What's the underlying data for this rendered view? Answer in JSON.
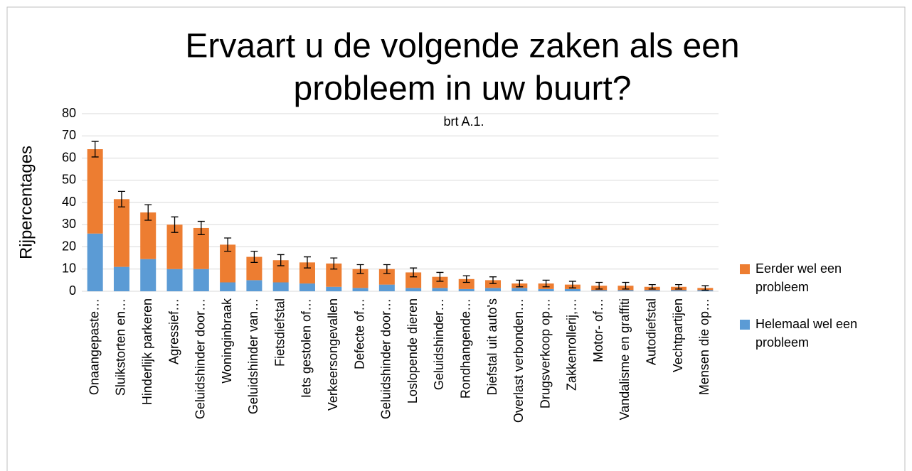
{
  "chart_data": {
    "type": "stacked-bar",
    "title": [
      "Ervaart u de volgende zaken als een",
      "probleem in uw buurt?"
    ],
    "annotation": "brt A.1.",
    "ylabel": "Rijpercentages",
    "categories": [
      "Onaangepaste…",
      "Sluikstorten en…",
      "Hinderlijk parkeren",
      "Agressief…",
      "Geluidshinder door…",
      "Woninginbraak",
      "Geluidshinder van…",
      "Fietsdiefstal",
      "Iets gestolen of…",
      "Verkeersongevallen",
      "Defecte of…",
      "Geluidshinder door…",
      "Loslopende dieren",
      "Geluidshinder…",
      "Rondhangende…",
      "Diefstal uit auto's",
      "Overlast verbonden…",
      "Drugsverkoop op…",
      "Zakkenrollerij,…",
      "Motor- of…",
      "Vandalisme en graffiti",
      "Autodiefstal",
      "Vechtpartijen",
      "Mensen die op…"
    ],
    "series": [
      {
        "name": "Helemaal wel een probleem",
        "color": "#5b9bd5",
        "values": [
          26,
          11,
          14.5,
          10,
          10,
          4,
          5,
          4,
          3.5,
          2,
          1.5,
          3,
          1.5,
          1.5,
          1,
          1.5,
          1.5,
          1,
          1,
          0.5,
          0.5,
          0.5,
          0.5,
          0.5
        ]
      },
      {
        "name": "Eerder wel een probleem",
        "color": "#ed7d31",
        "values": [
          38,
          30.5,
          21,
          20,
          18.5,
          17,
          10.5,
          10,
          9.5,
          10.5,
          8.5,
          7,
          7,
          5,
          4.5,
          3.5,
          2,
          2.5,
          2,
          2,
          2,
          1.5,
          1.5,
          1
        ]
      }
    ],
    "errors": [
      3.5,
      3.5,
      3.5,
      3.5,
      3,
      3,
      2.5,
      2.5,
      2.5,
      2.5,
      2,
      2,
      2,
      2,
      1.5,
      1.5,
      1.5,
      1.5,
      1.5,
      1.5,
      1.5,
      1,
      1,
      1
    ],
    "ylim": [
      0,
      80
    ],
    "yticks": [
      0,
      10,
      20,
      30,
      40,
      50,
      60,
      70,
      80
    ],
    "grid": true,
    "legend": "right"
  }
}
